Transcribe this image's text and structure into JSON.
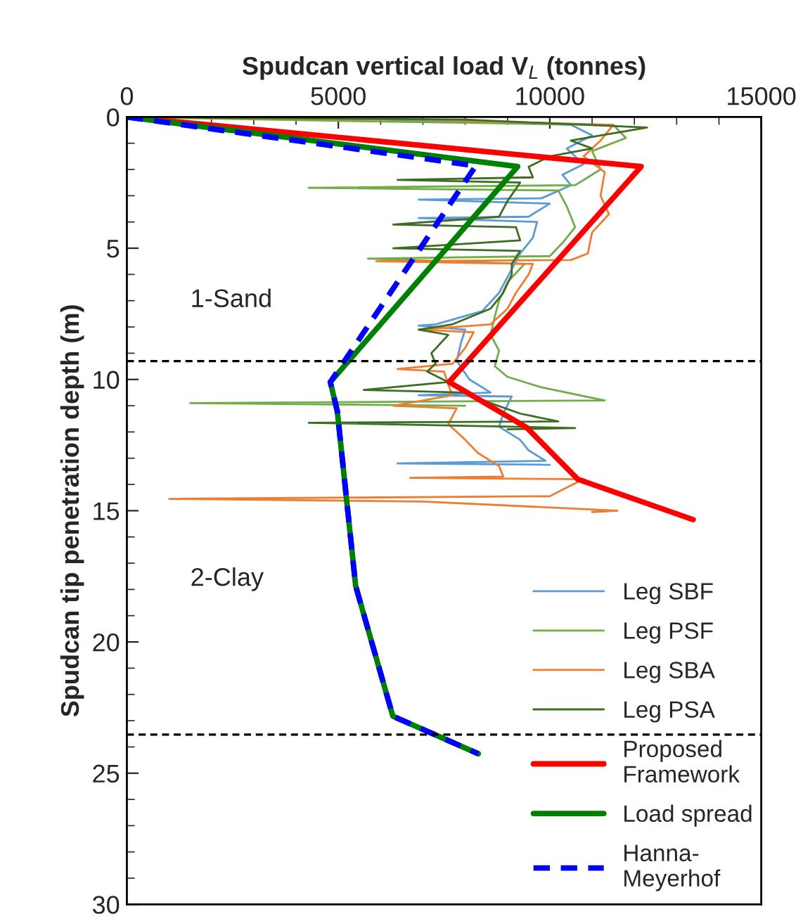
{
  "chart_data": {
    "type": "line",
    "xlabel": "Spudcan vertical load V$_{L}$ (tonnes)",
    "ylabel": "Spudcan tip penetration depth (m)",
    "xlim": [
      0,
      15000
    ],
    "xticks": [
      0,
      5000,
      10000,
      15000
    ],
    "ylim": [
      30,
      0
    ],
    "yticks": [
      0,
      5,
      10,
      15,
      20,
      25,
      30
    ],
    "grid": false,
    "legend": "bottom right",
    "series": [
      {
        "name": "Leg SBF",
        "color": "#5b9bd5",
        "line_style": "solid",
        "x": [
          0,
          6000,
          10500,
          11000,
          10400,
          10800,
          10300,
          10500,
          9800,
          6900,
          10000,
          9500,
          6900,
          9700,
          9600,
          9300,
          9100,
          8800,
          8400,
          7300,
          6900,
          8000,
          7900,
          7800,
          8100,
          8300,
          8600,
          6900,
          9100,
          8900,
          8800,
          9300,
          9500,
          9900,
          6400,
          10000
        ],
        "values": [
          0,
          0.1,
          0.3,
          0.7,
          1.2,
          1.8,
          2.2,
          2.6,
          3.1,
          3.15,
          3.3,
          3.8,
          3.85,
          4.0,
          4.6,
          5.2,
          5.8,
          6.7,
          7.4,
          7.9,
          7.95,
          8.1,
          8.6,
          9.3,
          10.0,
          10.2,
          10.5,
          10.6,
          10.65,
          11.3,
          11.8,
          12.3,
          12.7,
          13.1,
          13.2,
          13.25
        ]
      },
      {
        "name": "Leg PSF",
        "color": "#70ad47",
        "line_style": "solid",
        "x": [
          0,
          5000,
          11500,
          11800,
          11000,
          11200,
          10600,
          4300,
          10200,
          10400,
          10600,
          10300,
          10000,
          5700,
          9400,
          9000,
          8800,
          8700,
          8600,
          8800,
          8700,
          9000,
          9800,
          11300,
          1500,
          8000
        ],
        "values": [
          0,
          0.15,
          0.3,
          0.8,
          1.3,
          2.0,
          2.6,
          2.7,
          2.8,
          3.4,
          4.2,
          4.8,
          5.3,
          5.4,
          5.6,
          6.3,
          7.0,
          7.6,
          8.3,
          8.9,
          9.5,
          9.9,
          10.3,
          10.8,
          10.9,
          11.0
        ]
      },
      {
        "name": "Leg SBA",
        "color": "#ed7d31",
        "line_style": "solid",
        "x": [
          0,
          7000,
          11500,
          11200,
          10800,
          11300,
          11200,
          11400,
          11000,
          10900,
          10500,
          5900,
          9600,
          9500,
          9200,
          9000,
          8600,
          6900,
          8200,
          8000,
          7700,
          6400,
          7500,
          7600,
          7700,
          6300,
          7800,
          7600,
          8000,
          8300,
          8800,
          8900,
          6700,
          10800,
          10300,
          10000,
          1000,
          7000,
          11600,
          11000
        ],
        "values": [
          0,
          0.1,
          0.3,
          0.9,
          1.5,
          2.1,
          3.0,
          3.7,
          4.4,
          5.2,
          5.45,
          5.5,
          5.6,
          6.0,
          6.7,
          7.3,
          7.9,
          8.1,
          8.2,
          8.8,
          9.4,
          9.6,
          9.7,
          10.2,
          10.6,
          11.0,
          11.1,
          11.7,
          12.3,
          12.8,
          13.3,
          13.7,
          13.75,
          13.8,
          14.2,
          14.45,
          14.55,
          14.65,
          15.0,
          15.05
        ]
      },
      {
        "name": "Leg PSA",
        "color": "#3b6e22",
        "line_style": "solid",
        "x": [
          0,
          8000,
          12300,
          10500,
          11000,
          10000,
          9500,
          9600,
          6400,
          9300,
          9000,
          8800,
          6300,
          9200,
          9300,
          6300,
          9300,
          9100,
          9100,
          8900,
          8600,
          7700,
          6900,
          7600,
          7200,
          7300,
          7100,
          7600,
          5600,
          8000,
          8600,
          9300,
          10200,
          4300,
          10600,
          9000
        ],
        "values": [
          0,
          0.1,
          0.4,
          0.9,
          1.2,
          1.5,
          1.9,
          2.3,
          2.4,
          2.5,
          3.2,
          3.8,
          4.1,
          4.2,
          4.7,
          5.0,
          5.1,
          5.6,
          6.0,
          6.7,
          7.3,
          7.9,
          8.1,
          8.3,
          9.0,
          9.4,
          9.7,
          10.1,
          10.4,
          10.5,
          10.9,
          11.3,
          11.6,
          11.65,
          11.85,
          11.9
        ]
      },
      {
        "name": "Proposed\nFramework",
        "color": "#ff0000",
        "line_style": "solid",
        "x": [
          0,
          12160,
          7620,
          9460,
          10660,
          13390
        ],
        "values": [
          0,
          1.89,
          10.1,
          11.84,
          13.8,
          15.34
        ]
      },
      {
        "name": "Load spread",
        "color": "#008000",
        "line_style": "solid",
        "x": [
          0,
          9240,
          4810,
          4975,
          5410,
          6290,
          8310
        ],
        "values": [
          0,
          1.89,
          10.1,
          11.2,
          17.87,
          22.83,
          24.26
        ]
      },
      {
        "name": "Hanna-\nMeyerhof",
        "color": "#0000ff",
        "line_style": "dashed",
        "x": [
          0,
          8250,
          4810,
          4975,
          5410,
          6290,
          8310
        ],
        "values": [
          0,
          1.86,
          10.1,
          11.2,
          17.87,
          22.83,
          24.26
        ]
      }
    ],
    "ref_lines": [
      {
        "axis": "y",
        "value": 9.3,
        "color": "#000000",
        "line_style": "dashed"
      },
      {
        "axis": "y",
        "value": 23.53,
        "color": "#000000",
        "line_style": "dashed"
      }
    ],
    "annotations": [
      "1-Sand",
      "2-Clay"
    ]
  }
}
